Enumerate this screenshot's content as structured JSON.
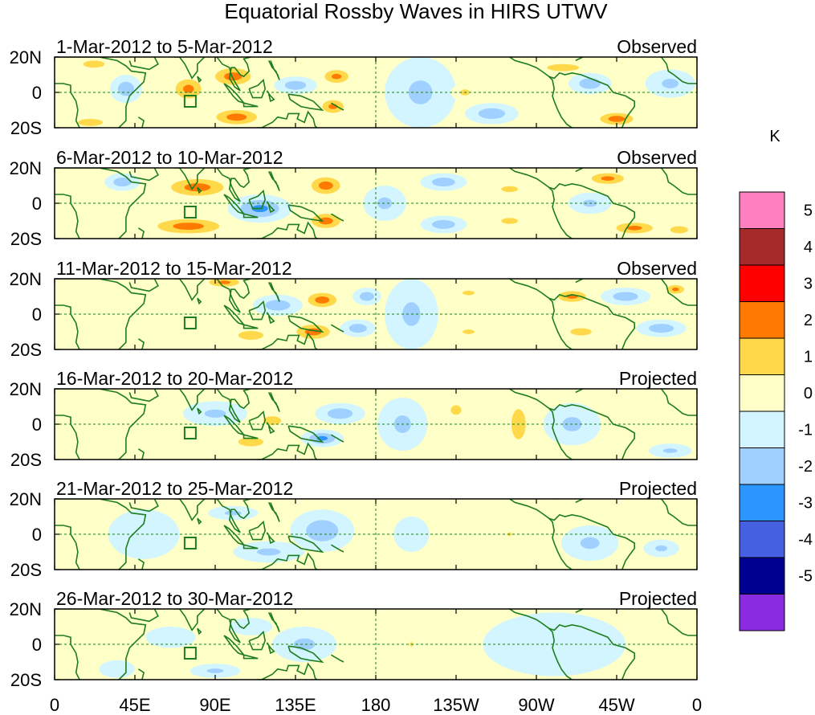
{
  "chart_data": {
    "type": "heatmap",
    "title": "Equatorial Rossby Waves in HIRS UTWV",
    "x_ticks": [
      "0",
      "45E",
      "90E",
      "135E",
      "180",
      "135W",
      "90W",
      "45W",
      "0"
    ],
    "y_ticks": [
      "20N",
      "0",
      "20S"
    ],
    "xlim_deg": [
      0,
      360
    ],
    "ylim_deg": [
      -20,
      20
    ],
    "colorbar": {
      "unit": "K",
      "labels": [
        "5",
        "4",
        "3",
        "2",
        "1",
        "0",
        "-1",
        "-2",
        "-3",
        "-4",
        "-5"
      ],
      "colors": [
        "#ff80c0",
        "#a52a2a",
        "#ff0000",
        "#ff7a00",
        "#ffd94a",
        "#ffffc8",
        "#d2f5ff",
        "#a0d0ff",
        "#2c95ff",
        "#4560e0",
        "#000090",
        "#8a2be2"
      ]
    },
    "panels": [
      {
        "period": "1-Mar-2012 to 5-Mar-2012",
        "status": "Observed",
        "anomalies": [
          {
            "lon": 75,
            "lat": 2,
            "value": 2.5,
            "rx": 12,
            "ry": 9
          },
          {
            "lon": 100,
            "lat": 9,
            "value": 3,
            "rx": 15,
            "ry": 7
          },
          {
            "lon": 102,
            "lat": -14,
            "value": 3,
            "rx": 17,
            "ry": 6
          },
          {
            "lon": 22,
            "lat": 16,
            "value": 2,
            "rx": 12,
            "ry": 4
          },
          {
            "lon": 20,
            "lat": -17,
            "value": 2,
            "rx": 14,
            "ry": 4
          },
          {
            "lon": 40,
            "lat": 2,
            "value": -2,
            "rx": 9,
            "ry": 8
          },
          {
            "lon": 135,
            "lat": 4,
            "value": -2,
            "rx": 12,
            "ry": 5
          },
          {
            "lon": 158,
            "lat": 9,
            "value": 2.5,
            "rx": 11,
            "ry": 6
          },
          {
            "lon": 156,
            "lat": -8,
            "value": 2.5,
            "rx": 10,
            "ry": 6
          },
          {
            "lon": 205,
            "lat": 0,
            "value": -1.5,
            "rx": 20,
            "ry": 20
          },
          {
            "lon": 245,
            "lat": -12,
            "value": -2,
            "rx": 15,
            "ry": 6
          },
          {
            "lon": 230,
            "lat": 0,
            "value": 1.5,
            "rx": 8,
            "ry": 5
          },
          {
            "lon": 285,
            "lat": 14,
            "value": 2,
            "rx": 18,
            "ry": 4
          },
          {
            "lon": 300,
            "lat": 5,
            "value": -2,
            "rx": 12,
            "ry": 6
          },
          {
            "lon": 315,
            "lat": -15,
            "value": 3,
            "rx": 14,
            "ry": 5
          },
          {
            "lon": 345,
            "lat": 5,
            "value": -1.5,
            "rx": 14,
            "ry": 8
          }
        ]
      },
      {
        "period": "6-Mar-2012 to 10-Mar-2012",
        "status": "Observed",
        "anomalies": [
          {
            "lon": 80,
            "lat": 9,
            "value": 3,
            "rx": 22,
            "ry": 7
          },
          {
            "lon": 75,
            "lat": -13,
            "value": 3,
            "rx": 26,
            "ry": 6
          },
          {
            "lon": 115,
            "lat": -3,
            "value": -2.5,
            "rx": 18,
            "ry": 8
          },
          {
            "lon": 38,
            "lat": 12,
            "value": -2,
            "rx": 10,
            "ry": 5
          },
          {
            "lon": 152,
            "lat": 10,
            "value": 3,
            "rx": 12,
            "ry": 7
          },
          {
            "lon": 152,
            "lat": -10,
            "value": 3,
            "rx": 12,
            "ry": 6
          },
          {
            "lon": 185,
            "lat": 0,
            "value": -1.5,
            "rx": 12,
            "ry": 10
          },
          {
            "lon": 218,
            "lat": 12,
            "value": -2,
            "rx": 13,
            "ry": 5
          },
          {
            "lon": 218,
            "lat": -12,
            "value": -2,
            "rx": 13,
            "ry": 5
          },
          {
            "lon": 255,
            "lat": 8,
            "value": 1.5,
            "rx": 14,
            "ry": 5
          },
          {
            "lon": 255,
            "lat": -10,
            "value": 1.5,
            "rx": 14,
            "ry": 5
          },
          {
            "lon": 310,
            "lat": 14,
            "value": 2.5,
            "rx": 15,
            "ry": 5
          },
          {
            "lon": 325,
            "lat": -14,
            "value": 2.5,
            "rx": 17,
            "ry": 5
          },
          {
            "lon": 300,
            "lat": 0,
            "value": -1.5,
            "rx": 12,
            "ry": 6
          },
          {
            "lon": 350,
            "lat": -15,
            "value": 2,
            "rx": 10,
            "ry": 4
          }
        ]
      },
      {
        "period": "11-Mar-2012 to 15-Mar-2012",
        "status": "Observed",
        "anomalies": [
          {
            "lon": 150,
            "lat": 8,
            "value": 3,
            "rx": 12,
            "ry": 6
          },
          {
            "lon": 145,
            "lat": -10,
            "value": 3,
            "rx": 14,
            "ry": 6
          },
          {
            "lon": 95,
            "lat": 18,
            "value": 2.5,
            "rx": 14,
            "ry": 4
          },
          {
            "lon": 110,
            "lat": -12,
            "value": 2,
            "rx": 14,
            "ry": 5
          },
          {
            "lon": 125,
            "lat": 5,
            "value": -2,
            "rx": 14,
            "ry": 6
          },
          {
            "lon": 170,
            "lat": -8,
            "value": -2,
            "rx": 10,
            "ry": 5
          },
          {
            "lon": 175,
            "lat": 10,
            "value": -2,
            "rx": 8,
            "ry": 5
          },
          {
            "lon": 200,
            "lat": 0,
            "value": -1.5,
            "rx": 15,
            "ry": 20
          },
          {
            "lon": 232,
            "lat": 12,
            "value": 1.5,
            "rx": 10,
            "ry": 4
          },
          {
            "lon": 232,
            "lat": -10,
            "value": 1.5,
            "rx": 10,
            "ry": 4
          },
          {
            "lon": 290,
            "lat": 10,
            "value": 2.5,
            "rx": 13,
            "ry": 5
          },
          {
            "lon": 295,
            "lat": -10,
            "value": 2,
            "rx": 12,
            "ry": 4
          },
          {
            "lon": 320,
            "lat": 10,
            "value": -2,
            "rx": 14,
            "ry": 5
          },
          {
            "lon": 340,
            "lat": -8,
            "value": -2,
            "rx": 14,
            "ry": 5
          },
          {
            "lon": 348,
            "lat": 14,
            "value": 2.5,
            "rx": 8,
            "ry": 4
          }
        ]
      },
      {
        "period": "16-Mar-2012 to 20-Mar-2012",
        "status": "Projected",
        "anomalies": [
          {
            "lon": 110,
            "lat": -10,
            "value": 2,
            "rx": 14,
            "ry": 5
          },
          {
            "lon": 122,
            "lat": 2,
            "value": 2,
            "rx": 10,
            "ry": 5
          },
          {
            "lon": 90,
            "lat": 6,
            "value": -1.5,
            "rx": 18,
            "ry": 7
          },
          {
            "lon": 160,
            "lat": 6,
            "value": -2,
            "rx": 14,
            "ry": 6
          },
          {
            "lon": 150,
            "lat": -8,
            "value": -2.5,
            "rx": 12,
            "ry": 5
          },
          {
            "lon": 195,
            "lat": 0,
            "value": -1.5,
            "rx": 14,
            "ry": 15
          },
          {
            "lon": 225,
            "lat": 8,
            "value": 1.5,
            "rx": 9,
            "ry": 8
          },
          {
            "lon": 260,
            "lat": 0,
            "value": 2,
            "rx": 8,
            "ry": 17
          },
          {
            "lon": 290,
            "lat": 0,
            "value": -1.5,
            "rx": 16,
            "ry": 12
          },
          {
            "lon": 345,
            "lat": -15,
            "value": -1.5,
            "rx": 12,
            "ry": 4
          },
          {
            "lon": 320,
            "lat": -5,
            "value": 1,
            "rx": 8,
            "ry": 4
          }
        ]
      },
      {
        "period": "21-Mar-2012 to 25-Mar-2012",
        "status": "Projected",
        "anomalies": [
          {
            "lon": 150,
            "lat": 2,
            "value": -2,
            "rx": 18,
            "ry": 12
          },
          {
            "lon": 120,
            "lat": -10,
            "value": -1.5,
            "rx": 20,
            "ry": 6
          },
          {
            "lon": 100,
            "lat": 12,
            "value": -1.5,
            "rx": 14,
            "ry": 4
          },
          {
            "lon": 50,
            "lat": 0,
            "value": -1,
            "rx": 20,
            "ry": 14
          },
          {
            "lon": 200,
            "lat": 0,
            "value": -1,
            "rx": 10,
            "ry": 10
          },
          {
            "lon": 255,
            "lat": 0,
            "value": 1.5,
            "rx": 4,
            "ry": 3
          },
          {
            "lon": 300,
            "lat": -5,
            "value": -1.5,
            "rx": 16,
            "ry": 10
          },
          {
            "lon": 340,
            "lat": -8,
            "value": -1.5,
            "rx": 10,
            "ry": 5
          }
        ]
      },
      {
        "period": "26-Mar-2012 to 30-Mar-2012",
        "status": "Projected",
        "anomalies": [
          {
            "lon": 90,
            "lat": -15,
            "value": -1.5,
            "rx": 14,
            "ry": 4
          },
          {
            "lon": 65,
            "lat": 4,
            "value": -1,
            "rx": 14,
            "ry": 6
          },
          {
            "lon": 140,
            "lat": 0,
            "value": -1.5,
            "rx": 18,
            "ry": 10
          },
          {
            "lon": 110,
            "lat": 10,
            "value": -1,
            "rx": 12,
            "ry": 5
          },
          {
            "lon": 200,
            "lat": 0,
            "value": 1.5,
            "rx": 3,
            "ry": 4
          },
          {
            "lon": 280,
            "lat": 0,
            "value": -1,
            "rx": 40,
            "ry": 18
          },
          {
            "lon": 35,
            "lat": -14,
            "value": -1,
            "rx": 10,
            "ry": 5
          }
        ]
      }
    ]
  }
}
